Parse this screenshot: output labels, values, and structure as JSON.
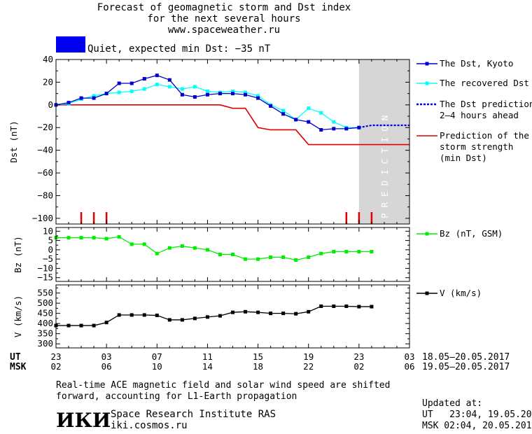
{
  "header": {
    "title_line1": "Forecast of geomagnetic storm and Dst index",
    "title_line2": "for the next several hours",
    "website": "www.spaceweather.ru"
  },
  "status": {
    "label": "Quiet, expected min Dst: −35 nT",
    "color": "#0000ee"
  },
  "legend": {
    "dst_kyoto": "The Dst, Kyoto",
    "dst_recovered": "The recovered Dst",
    "dst_prediction_l1": "The Dst prediction",
    "dst_prediction_l2": "2–4 hours ahead",
    "storm_l1": "Prediction of the",
    "storm_l2": "storm strength",
    "storm_l3": "(min Dst)",
    "bz": "Bz (nT, GSM)",
    "v": "V (km/s)"
  },
  "colors": {
    "dst_kyoto": "#0000cc",
    "dst_recovered": "#00ffff",
    "dst_prediction": "#0000ee",
    "storm": "#e00000",
    "bz": "#00ee00",
    "v": "#000000",
    "prediction_shade": "#d6d6d6"
  },
  "prediction_text": "PREDICTION",
  "x_axis": {
    "ut_label": "UT",
    "msk_label": "MSK",
    "ut_ticks": [
      "23",
      "03",
      "07",
      "11",
      "15",
      "19",
      "23",
      "03"
    ],
    "msk_ticks": [
      "02",
      "06",
      "10",
      "14",
      "18",
      "22",
      "02",
      "06"
    ],
    "ut_range": "18.05–20.05.2017",
    "msk_range": "19.05–20.05.2017"
  },
  "footer": {
    "note_l1": "Real-time ACE magnetic field and solar wind speed are shifted",
    "note_l2": "forward, accounting for L1-Earth propagation",
    "logo": "ИКИ",
    "institute": "Space Research Institute RAS",
    "institute_url": "iki.cosmos.ru",
    "updated_label": "Updated at:",
    "updated_ut": "UT   23:04, 19.05.2017",
    "updated_msk": "MSK 02:04, 20.05.2017"
  },
  "chart_data": [
    {
      "type": "line",
      "ylabel": "Dst (nT)",
      "ylim": [
        -105,
        40
      ],
      "y_ticks": [
        40,
        20,
        0,
        -20,
        -40,
        -60,
        -80,
        -100
      ],
      "x_hours_from": 23,
      "xlim": [
        0,
        28
      ],
      "prediction_region": [
        24,
        28
      ],
      "series": [
        {
          "name": "The Dst, Kyoto",
          "x": [
            0,
            1,
            2,
            3,
            4,
            5,
            6,
            7,
            8,
            9,
            10,
            11,
            12,
            13,
            14,
            15,
            16,
            17,
            18,
            19,
            20,
            21,
            22,
            23,
            24
          ],
          "values": [
            0,
            2,
            6,
            6,
            10,
            19,
            19,
            23,
            26,
            22,
            9,
            7,
            9,
            10,
            10,
            9,
            6,
            -1,
            -8,
            -13,
            -15,
            -22,
            -21,
            -21,
            -20
          ]
        },
        {
          "name": "The recovered Dst",
          "x": [
            0,
            1,
            2,
            3,
            4,
            5,
            6,
            7,
            8,
            9,
            10,
            11,
            12,
            13,
            14,
            15,
            16,
            17,
            18,
            19,
            20,
            21,
            22,
            23,
            24
          ],
          "values": [
            0,
            1,
            5,
            8,
            10,
            11,
            12,
            14,
            18,
            16,
            14,
            16,
            12,
            11,
            12,
            11,
            8,
            0,
            -5,
            -13,
            -3,
            -7,
            -15,
            -20,
            -20
          ]
        },
        {
          "name": "The Dst prediction 2–4 hours ahead",
          "x": [
            24,
            25,
            26,
            27,
            28
          ],
          "values": [
            -20,
            -18,
            -18,
            -18,
            -18
          ]
        },
        {
          "name": "Prediction of the storm strength (min Dst)",
          "x": [
            0,
            13,
            14,
            15,
            16,
            17,
            18,
            19,
            20,
            21,
            22,
            23,
            24,
            25,
            26,
            27,
            28
          ],
          "values": [
            0,
            0,
            -3,
            -3,
            -20,
            -22,
            -22,
            -22,
            -35,
            -35,
            -35,
            -35,
            -35,
            -35,
            -35,
            -35,
            -35
          ]
        }
      ],
      "markers_x": [
        2,
        3,
        4,
        23,
        24,
        25
      ]
    },
    {
      "type": "line",
      "ylabel": "Bz (nT)",
      "ylim": [
        -17,
        12
      ],
      "y_ticks": [
        10,
        5,
        0,
        -5,
        -10,
        -15
      ],
      "series": [
        {
          "name": "Bz (nT, GSM)",
          "x": [
            0,
            1,
            2,
            3,
            4,
            5,
            6,
            7,
            8,
            9,
            10,
            11,
            12,
            13,
            14,
            15,
            16,
            17,
            18,
            19,
            20,
            21,
            22,
            23,
            24,
            25
          ],
          "values": [
            6.5,
            6.5,
            6.5,
            6.5,
            6,
            7,
            3,
            3,
            -2,
            1,
            2,
            1,
            0,
            -2.5,
            -2.5,
            -5,
            -5,
            -4,
            -4,
            -5.5,
            -4,
            -2,
            -1,
            -1,
            -1,
            -1
          ]
        }
      ]
    },
    {
      "type": "line",
      "ylabel": "V (km/s)",
      "ylim": [
        280,
        590
      ],
      "y_ticks": [
        550,
        500,
        450,
        400,
        350,
        300
      ],
      "series": [
        {
          "name": "V (km/s)",
          "x": [
            0,
            1,
            2,
            3,
            4,
            5,
            6,
            7,
            8,
            9,
            10,
            11,
            12,
            13,
            14,
            15,
            16,
            17,
            18,
            19,
            20,
            21,
            22,
            23,
            24,
            25
          ],
          "values": [
            390,
            390,
            390,
            390,
            405,
            442,
            442,
            442,
            440,
            418,
            418,
            425,
            432,
            438,
            455,
            458,
            455,
            450,
            450,
            448,
            458,
            485,
            485,
            485,
            483,
            483
          ]
        }
      ]
    }
  ]
}
